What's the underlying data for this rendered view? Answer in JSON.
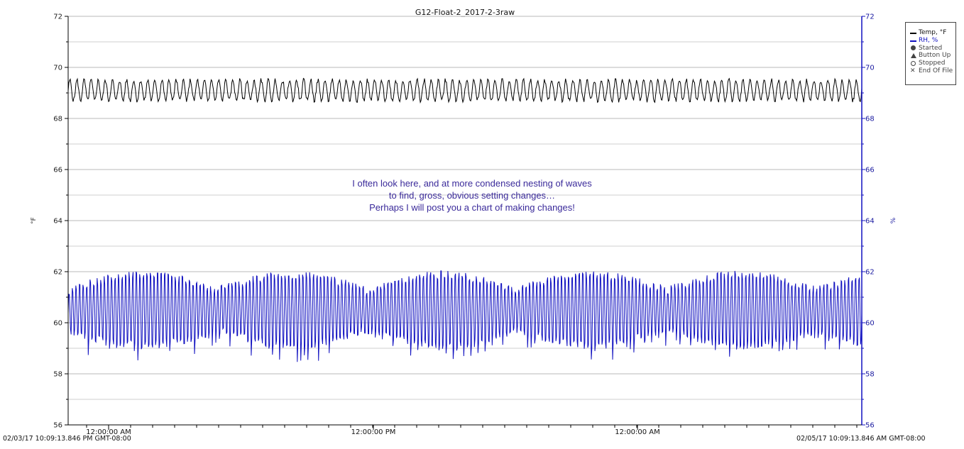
{
  "chart_data": {
    "type": "line",
    "title": "G12-Float-2_2017-2-3raw",
    "ylabel_left": "°F",
    "ylabel_right": "%",
    "ylim_left": [
      56,
      72
    ],
    "ylim_right": [
      56,
      72
    ],
    "yticks_left": [
      "56",
      "58",
      "60",
      "62",
      "64",
      "66",
      "68",
      "70",
      "72"
    ],
    "yticks_right": [
      "56",
      "58",
      "60",
      "62",
      "64",
      "66",
      "68",
      "70",
      "72"
    ],
    "xticks": [
      "12:00:00 AM",
      "12:00:00 PM",
      "12:00:00 AM"
    ],
    "x_start_label": "02/03/17 10:09:13.846 PM GMT-08:00",
    "x_end_label": "02/05/17 10:09:13.846 AM GMT-08:00",
    "grid": true,
    "legend_position": "top-right",
    "legend": [
      {
        "label": "Temp, °F",
        "marker": "line",
        "color": "#000000"
      },
      {
        "label": "RH, %",
        "marker": "line",
        "color": "#1010c0"
      },
      {
        "label": "Started",
        "marker": "filled-circle",
        "color": "#444444"
      },
      {
        "label": "Button Up",
        "marker": "triangle",
        "color": "#444444"
      },
      {
        "label": "Stopped",
        "marker": "open-circle",
        "color": "#444444"
      },
      {
        "label": "End Of File",
        "marker": "x",
        "color": "#444444"
      }
    ],
    "series": [
      {
        "name": "Temp, °F",
        "color": "#000000",
        "axis": "left",
        "pattern": {
          "cycles": 112,
          "min": 68.7,
          "max": 69.5
        }
      },
      {
        "name": "RH, %",
        "color": "#1010c0",
        "axis": "right",
        "pattern": {
          "cycles": 224,
          "min": 59.0,
          "max": 62.0
        }
      }
    ],
    "annotation": [
      "I often look here, and at more condensed nesting of waves",
      "to find, gross, obvious setting changes…",
      "Perhaps I will post you a chart of making changes!"
    ]
  }
}
